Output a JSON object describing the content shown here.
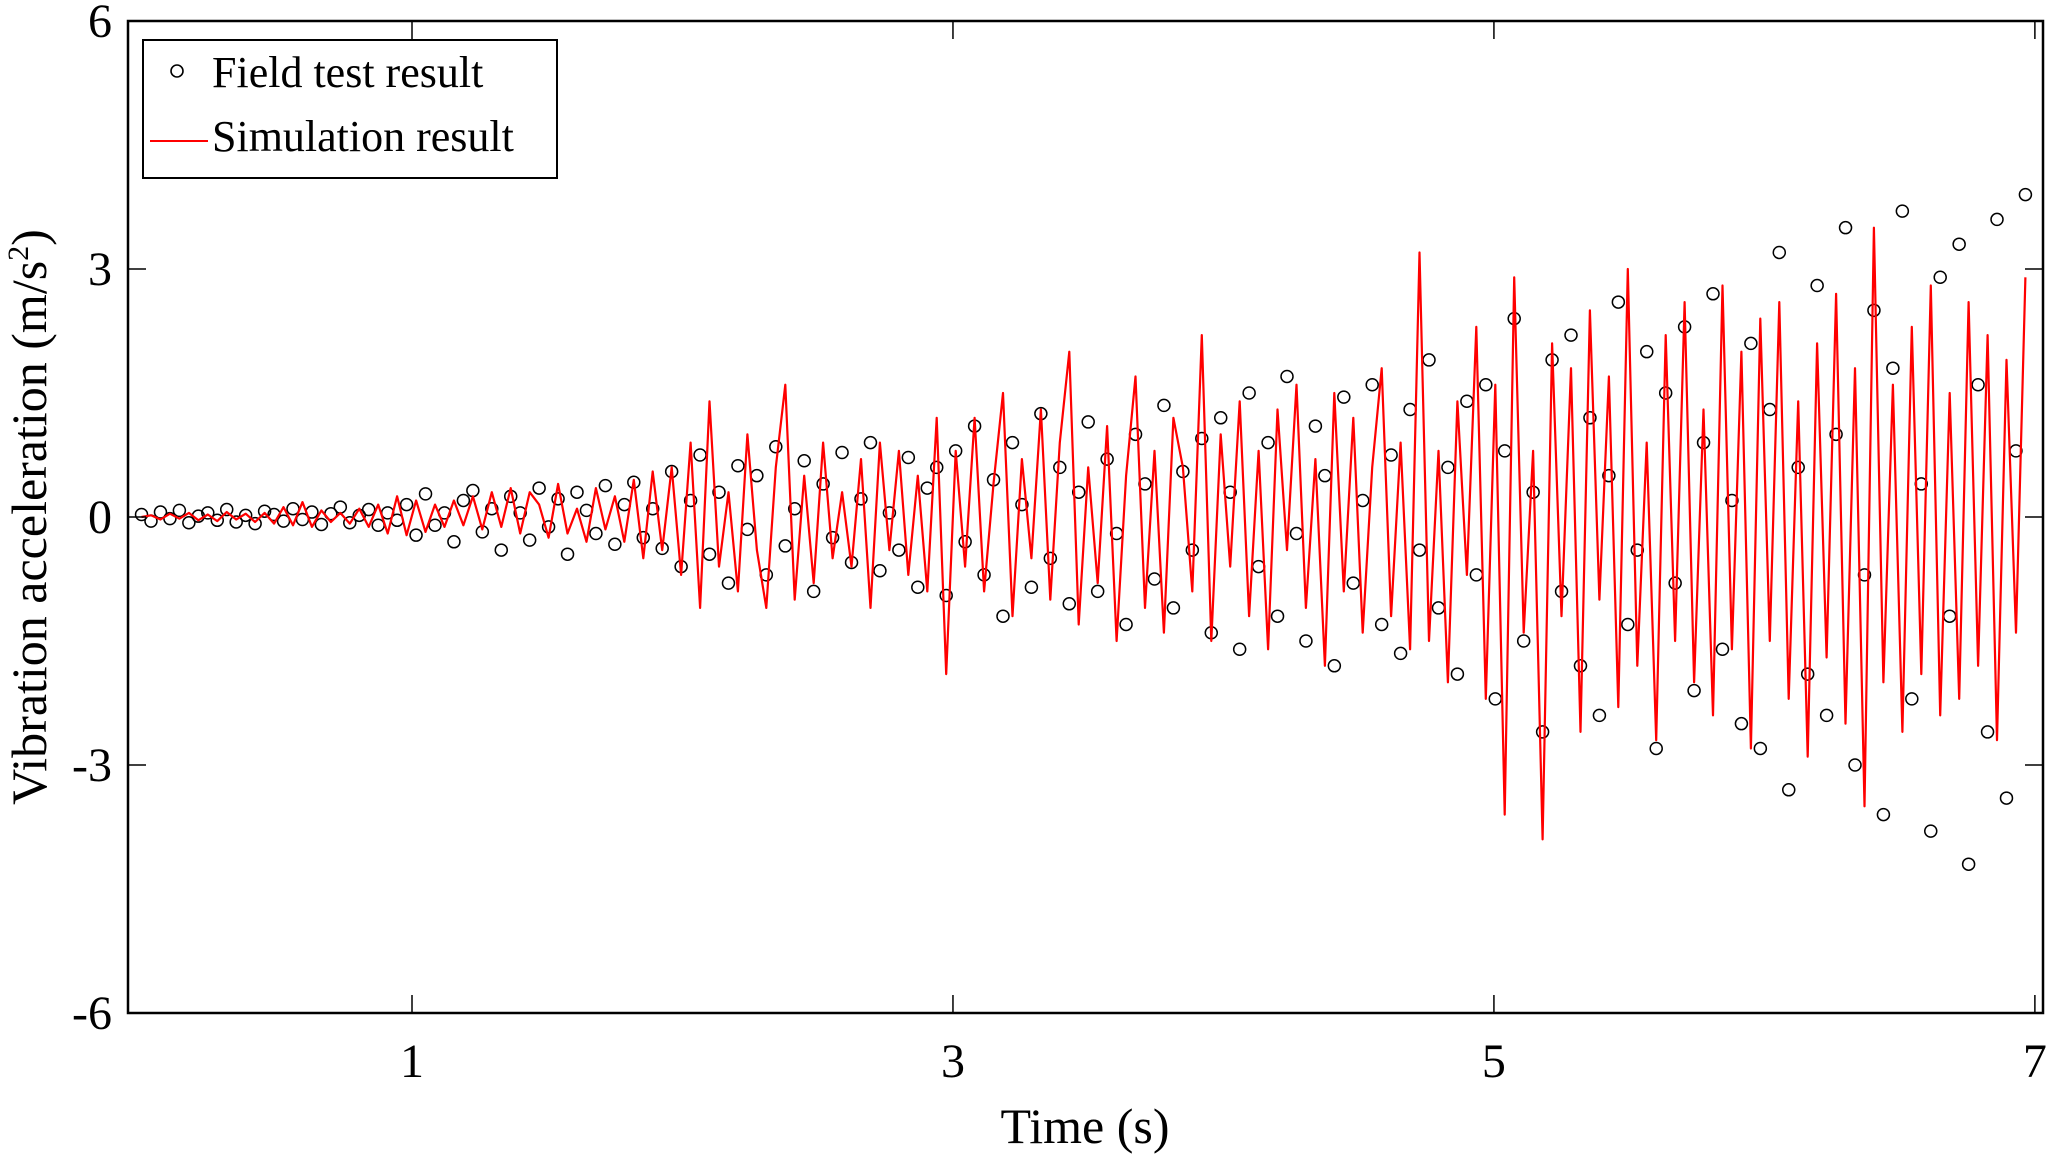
{
  "chart_data": {
    "type": "scatter+line",
    "xlabel": "Time (s)",
    "ylabel": "Vibration acceleration (m/s",
    "ylabel_sup": "2",
    "ylabel_close": ")",
    "xlim": [
      -0.05,
      7.03
    ],
    "ylim": [
      -6,
      6
    ],
    "xticks": [
      1,
      3,
      5,
      7
    ],
    "xtick_labels": [
      "1",
      "3",
      "5",
      "7"
    ],
    "yticks": [
      6,
      3,
      0,
      -3,
      -6
    ],
    "ytick_labels": [
      "6",
      "3",
      "0",
      "-3",
      "-6"
    ],
    "grid": false,
    "legend_position": "top-left",
    "colors": {
      "field": "#000000",
      "simulation": "#ff0000"
    },
    "series": [
      {
        "name": "Field test result",
        "kind": "scatter",
        "marker": "open-circle",
        "x_start": 0,
        "x_step": 0.035,
        "values": [
          0.03,
          -0.05,
          0.06,
          -0.02,
          0.08,
          -0.07,
          0.01,
          0.05,
          -0.04,
          0.09,
          -0.06,
          0.02,
          -0.08,
          0.07,
          0.03,
          -0.05,
          0.1,
          -0.03,
          0.06,
          -0.09,
          0.04,
          0.12,
          -0.07,
          0.02,
          0.09,
          -0.1,
          0.05,
          -0.04,
          0.15,
          -0.22,
          0.28,
          -0.1,
          0.05,
          -0.3,
          0.2,
          0.32,
          -0.18,
          0.1,
          -0.4,
          0.25,
          0.05,
          -0.28,
          0.35,
          -0.12,
          0.22,
          -0.45,
          0.3,
          0.08,
          -0.2,
          0.38,
          -0.33,
          0.15,
          0.42,
          -0.25,
          0.1,
          -0.38,
          0.55,
          -0.6,
          0.2,
          0.75,
          -0.45,
          0.3,
          -0.8,
          0.62,
          -0.15,
          0.5,
          -0.7,
          0.85,
          -0.35,
          0.1,
          0.68,
          -0.9,
          0.4,
          -0.25,
          0.78,
          -0.55,
          0.22,
          0.9,
          -0.65,
          0.05,
          -0.4,
          0.72,
          -0.85,
          0.35,
          0.6,
          -0.95,
          0.8,
          -0.3,
          1.1,
          -0.7,
          0.45,
          -1.2,
          0.9,
          0.15,
          -0.85,
          1.25,
          -0.5,
          0.6,
          -1.05,
          0.3,
          1.15,
          -0.9,
          0.7,
          -0.2,
          -1.3,
          1.0,
          0.4,
          -0.75,
          1.35,
          -1.1,
          0.55,
          -0.4,
          0.95,
          -1.4,
          1.2,
          0.3,
          -1.6,
          1.5,
          -0.6,
          0.9,
          -1.2,
          1.7,
          -0.2,
          -1.5,
          1.1,
          0.5,
          -1.8,
          1.45,
          -0.8,
          0.2,
          1.6,
          -1.3,
          0.75,
          -1.65,
          1.3,
          -0.4,
          1.9,
          -1.1,
          0.6,
          -1.9,
          1.4,
          -0.7,
          1.6,
          -2.2,
          0.8,
          2.4,
          -1.5,
          0.3,
          -2.6,
          1.9,
          -0.9,
          2.2,
          -1.8,
          1.2,
          -2.4,
          0.5,
          2.6,
          -1.3,
          -0.4,
          2.0,
          -2.8,
          1.5,
          -0.8,
          2.3,
          -2.1,
          0.9,
          2.7,
          -1.6,
          0.2,
          -2.5,
          2.1,
          -2.8,
          1.3,
          3.2,
          -3.3,
          0.6,
          -1.9,
          2.8,
          -2.4,
          1.0,
          3.5,
          -3.0,
          -0.7,
          2.5,
          -3.6,
          1.8,
          3.7,
          -2.2,
          0.4,
          -3.8,
          2.9,
          -1.2,
          3.3,
          -4.2,
          1.6,
          -2.6,
          3.6,
          -3.4,
          0.8,
          3.9
        ]
      },
      {
        "name": "Simulation result",
        "kind": "line",
        "x_start": 0,
        "x_step": 0.035,
        "values": [
          0,
          0.02,
          -0.03,
          0.04,
          -0.02,
          0.05,
          -0.04,
          0.03,
          -0.05,
          0.06,
          -0.03,
          0.04,
          -0.06,
          0.05,
          -0.08,
          0.12,
          -0.1,
          0.18,
          -0.12,
          0.08,
          -0.06,
          0.05,
          -0.08,
          0.1,
          -0.12,
          0.15,
          -0.2,
          0.25,
          -0.22,
          0.2,
          -0.18,
          0.15,
          -0.12,
          0.2,
          -0.1,
          0.25,
          -0.15,
          0.3,
          -0.12,
          0.35,
          -0.2,
          0.3,
          0.15,
          -0.25,
          0.4,
          -0.2,
          0.1,
          -0.3,
          0.35,
          -0.15,
          0.25,
          -0.3,
          0.45,
          -0.5,
          0.55,
          -0.4,
          0.6,
          -0.7,
          0.9,
          -1.1,
          1.4,
          -0.6,
          0.3,
          -0.9,
          1.0,
          -0.4,
          -1.1,
          0.6,
          1.6,
          -1.0,
          0.5,
          -0.8,
          0.9,
          -0.5,
          0.3,
          -0.6,
          0.7,
          -1.1,
          0.9,
          -0.4,
          0.8,
          -0.7,
          0.5,
          -0.9,
          1.2,
          -1.9,
          0.8,
          -0.6,
          1.2,
          -0.9,
          0.4,
          1.5,
          -1.2,
          0.7,
          -0.5,
          1.3,
          -1.0,
          0.9,
          2.0,
          -1.3,
          0.6,
          -0.8,
          1.1,
          -1.5,
          0.5,
          1.7,
          -1.1,
          0.8,
          -1.4,
          1.2,
          0.6,
          -0.9,
          2.2,
          -1.5,
          1.0,
          -0.6,
          1.4,
          -1.2,
          0.8,
          -1.6,
          1.3,
          -0.4,
          1.6,
          -1.1,
          0.7,
          -1.8,
          1.5,
          -0.9,
          1.2,
          -1.4,
          0.6,
          1.8,
          -1.2,
          0.9,
          -1.6,
          3.2,
          -1.5,
          0.8,
          -2.0,
          1.4,
          -0.7,
          2.3,
          -2.2,
          1.6,
          -3.6,
          2.9,
          -1.4,
          0.8,
          -3.9,
          2.1,
          -1.2,
          1.8,
          -2.6,
          2.5,
          -1.0,
          1.7,
          -2.3,
          3.0,
          -1.8,
          0.9,
          -2.7,
          2.2,
          -1.5,
          2.6,
          -2.0,
          1.3,
          -2.4,
          2.8,
          -1.6,
          2.0,
          -2.8,
          2.4,
          -1.5,
          2.6,
          -2.2,
          1.4,
          -2.9,
          2.1,
          -1.7,
          2.7,
          -2.5,
          1.8,
          -3.5,
          3.5,
          -2.0,
          1.6,
          -2.6,
          2.3,
          -1.9,
          2.8,
          -2.4,
          1.5,
          -2.2,
          2.6,
          -1.8,
          2.2,
          -2.7,
          1.9,
          -1.4,
          2.9
        ]
      }
    ]
  }
}
